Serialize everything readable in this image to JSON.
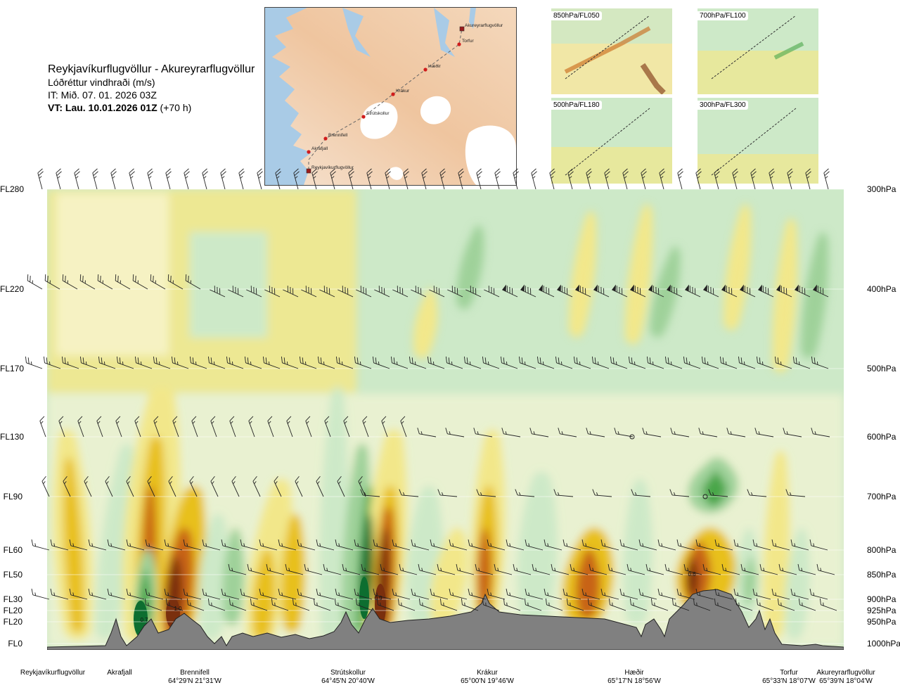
{
  "header": {
    "title": "Reykjavíkurflugvöllur - Akureyrarflugvöllur",
    "subtitle": "Lóðréttur vindhraði (m/s)",
    "issue_time": "IT: Mið. 07. 01. 2026 03Z",
    "valid_time_bold": "VT: Lau. 10.01.2026 01Z",
    "valid_time_rest": " (+70 h)"
  },
  "map": {
    "points": [
      {
        "name": "Akureyrarflugvöllur"
      },
      {
        "name": "Torfur"
      },
      {
        "name": "Hæðir"
      },
      {
        "name": "Krákur"
      },
      {
        "name": "Strútskollur"
      },
      {
        "name": "Brennifell"
      },
      {
        "name": "Akrafjall"
      },
      {
        "name": "Reykjavíkurflugvöllur"
      }
    ]
  },
  "thumbnails": [
    {
      "label": "850hPa/FL050"
    },
    {
      "label": "700hPa/FL100"
    },
    {
      "label": "500hPa/FL180"
    },
    {
      "label": "300hPa/FL300"
    }
  ],
  "colors": {
    "strong_up": "#7a2f0e",
    "up_2": "#c86414",
    "up_1": "#e8c01e",
    "up_0": "#f2e78a",
    "neutral": "#fbf7d7",
    "down_0": "#cde9c8",
    "down_1": "#9fd19a",
    "down_2": "#4aa64a",
    "strong_down": "#0d6e30",
    "terrain": "#808080"
  },
  "chart_data": {
    "type": "heatmap",
    "title": "Reykjavíkurflugvöllur - Akureyrarflugvöllur",
    "variable": "Lóðréttur vindhraði (m/s)",
    "left_axis": [
      "FL280",
      "FL220",
      "FL170",
      "FL130",
      "FL90",
      "FL60",
      "FL50",
      "FL30",
      "FL20",
      "FL20",
      "FL0"
    ],
    "right_axis": [
      "300hPa",
      "400hPa",
      "500hPa",
      "600hPa",
      "700hPa",
      "800hPa",
      "850hPa",
      "900hPa",
      "925hPa",
      "950hPa",
      "1000hPa"
    ],
    "annotations": [
      "0.7",
      "1.0",
      "0.9",
      "0.6"
    ],
    "locations": [
      {
        "name": "Reykjavíkurflugvöllur",
        "coord": ""
      },
      {
        "name": "Akrafjall",
        "coord": ""
      },
      {
        "name": "Brennifell",
        "coord": "64°29'N 21°31'W"
      },
      {
        "name": "Strútskollur",
        "coord": "64°45'N 20°40'W"
      },
      {
        "name": "Krákur",
        "coord": "65°00'N 19°46'W"
      },
      {
        "name": "Hæðir",
        "coord": "65°17'N 18°56'W"
      },
      {
        "name": "Torfur",
        "coord": "65°33'N 18°07'W"
      },
      {
        "name": "Akureyrarflugvöllur",
        "coord": "65°39'N 18°04'W"
      }
    ]
  }
}
